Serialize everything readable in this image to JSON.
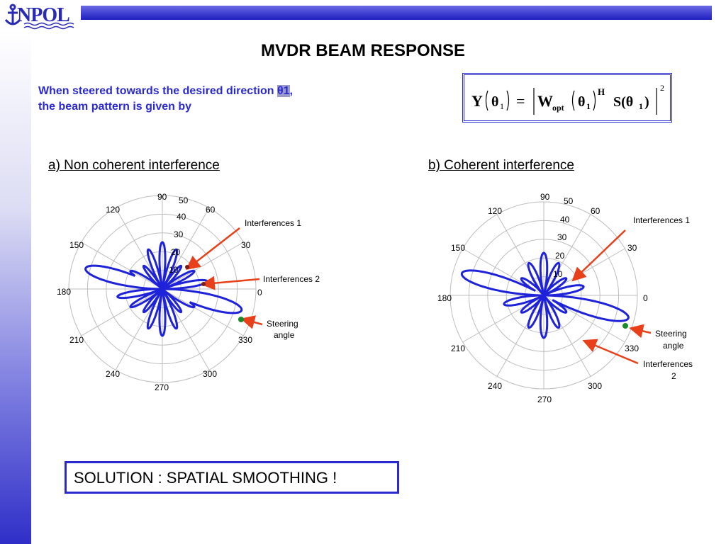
{
  "header": {
    "logo_text": "NPOL"
  },
  "slide": {
    "title": "MVDR BEAM RESPONSE",
    "intro_line1_prefix": "When steered towards the desired direction ",
    "intro_theta": "θ1",
    "intro_line1_suffix": ",",
    "intro_line2": "the beam pattern is given by",
    "formula": {
      "lhs": "Y",
      "arg1": "θ",
      "arg1_sub": "1",
      "equals": "=",
      "w": "W",
      "w_sub": "opt",
      "arg2": "θ",
      "arg2_sub": "1",
      "sup_h": "H",
      "s": "S(θ",
      "s_sub": "1",
      "s_close": ")",
      "sup_2": "2"
    },
    "solution": "SOLUTION : SPATIAL SMOOTHING !"
  },
  "plots": [
    {
      "heading": "a) Non coherent interference",
      "angle_labels": [
        "0",
        "30",
        "60",
        "90",
        "120",
        "150",
        "180",
        "210",
        "240",
        "270",
        "300",
        "330"
      ],
      "radial_labels": [
        "10",
        "20",
        "30",
        "40",
        "50"
      ],
      "annotations": {
        "interf1": "Interferences 1",
        "interf2": "Interferences 2",
        "steer_1": "Steering",
        "steer_2": "angle"
      }
    },
    {
      "heading": "b) Coherent interference",
      "angle_labels": [
        "0",
        "30",
        "60",
        "90",
        "120",
        "150",
        "180",
        "210",
        "240",
        "270",
        "300",
        "330"
      ],
      "radial_labels": [
        "10",
        "20",
        "30",
        "40",
        "50"
      ],
      "annotations": {
        "interf1": "Interferences 1",
        "interf2_1": "Interferences",
        "interf2_2": "2",
        "steer_1": "Steering",
        "steer_2": "angle"
      }
    }
  ],
  "colors": {
    "accent": "#2a2ad0",
    "pattern": "#1e22d8",
    "arrow": "#e8401a",
    "steer_marker": "#1a8a2a",
    "interf_marker": "#7a1a1a"
  }
}
